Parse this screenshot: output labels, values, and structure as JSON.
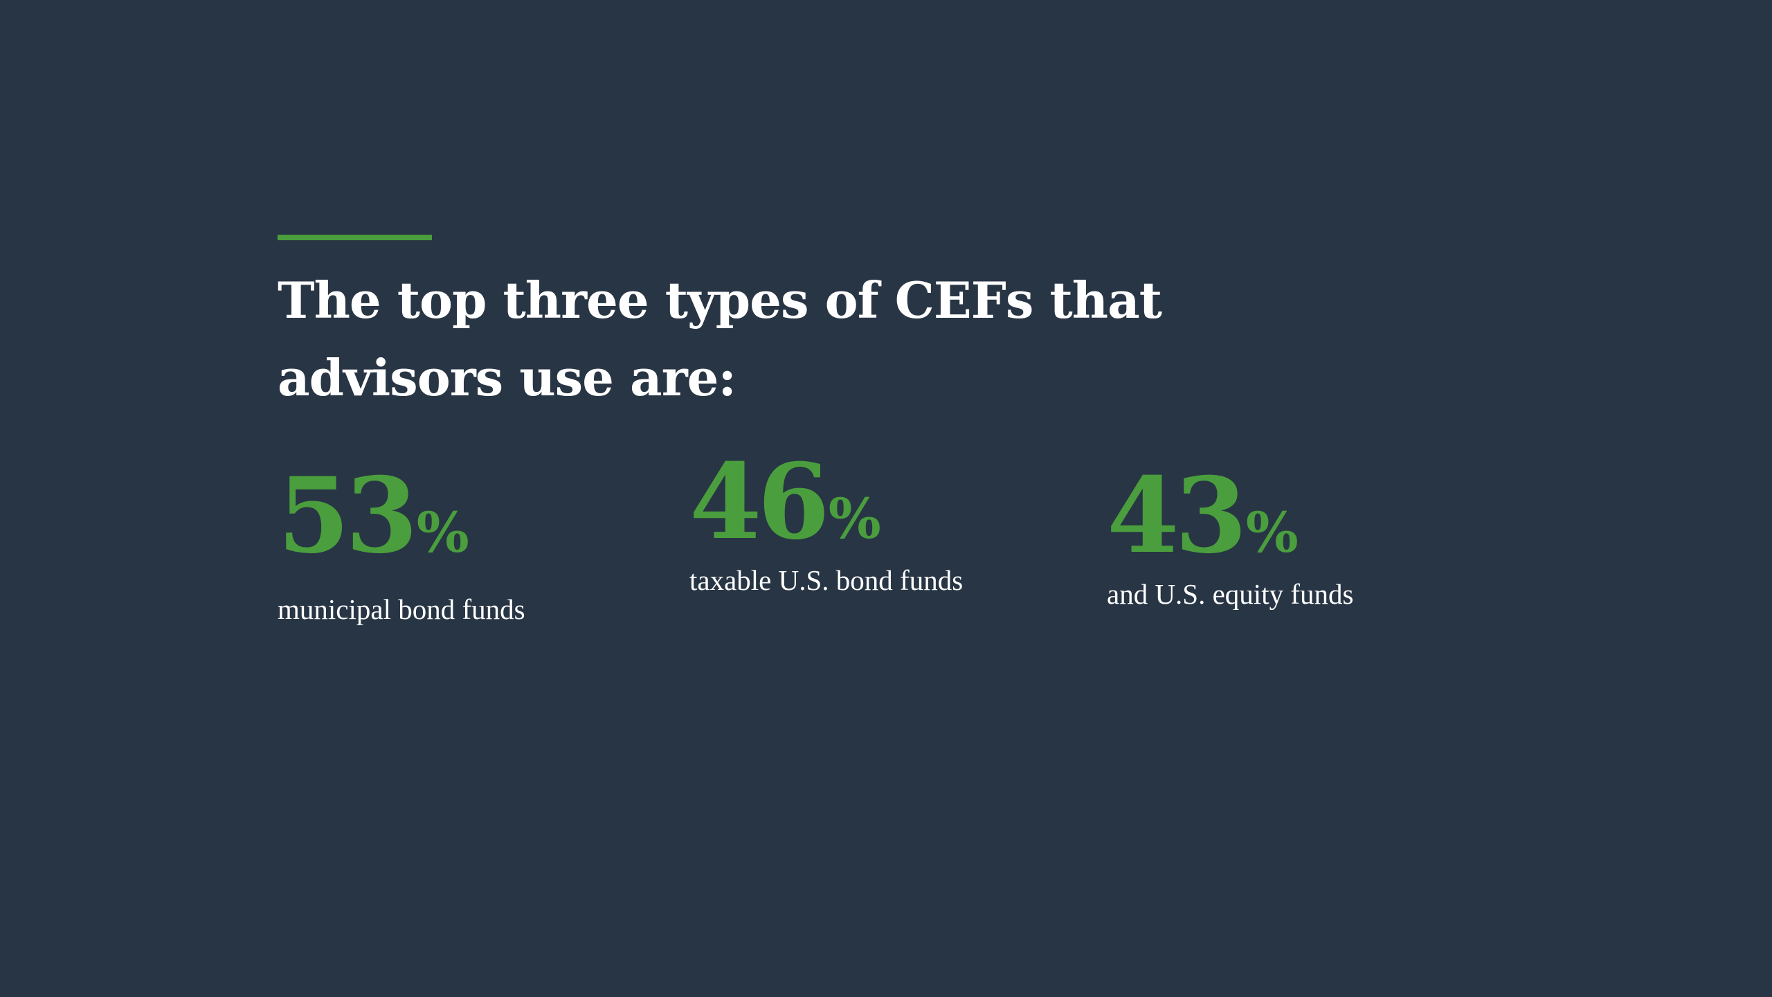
{
  "colors": {
    "background": "#283544",
    "accent": "#4a9e3d",
    "text": "#ffffff"
  },
  "headline": "The top three types of CEFs that advisors use are:",
  "stats": [
    {
      "value": "53",
      "unit": "%",
      "label": "municipal bond funds"
    },
    {
      "value": "46",
      "unit": "%",
      "label": "taxable U.S. bond funds"
    },
    {
      "value": "43",
      "unit": "%",
      "label": "and U.S. equity funds"
    }
  ]
}
